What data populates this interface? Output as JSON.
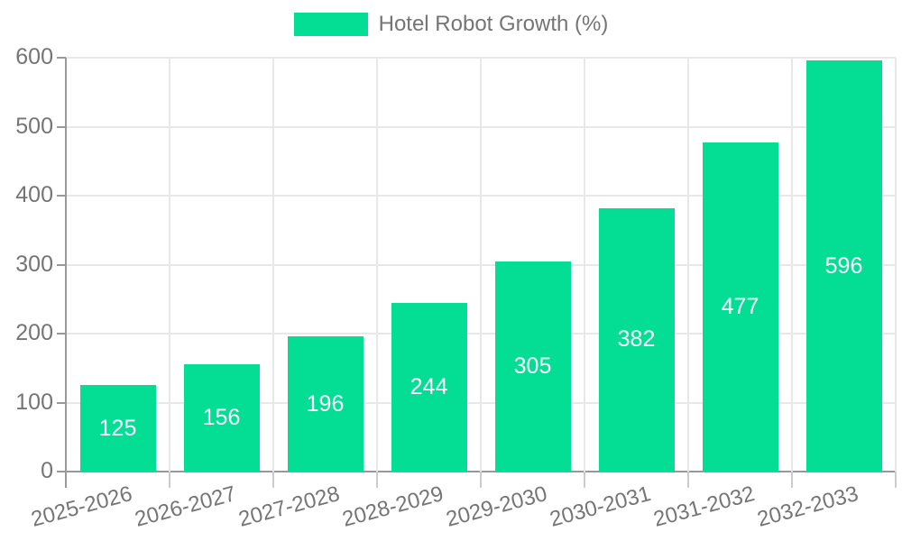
{
  "legend": {
    "label": "Hotel Robot Growth (%)",
    "swatch_color": "#04DE94"
  },
  "chart_data": {
    "type": "bar",
    "title": "Hotel Robot Growth (%)",
    "categories": [
      "2025-2026",
      "2026-2027",
      "2027-2028",
      "2028-2029",
      "2029-2030",
      "2030-2031",
      "2031-2032",
      "2032-2033"
    ],
    "values": [
      125,
      156,
      196,
      244,
      305,
      382,
      477,
      596
    ],
    "series": [
      {
        "name": "Hotel Robot Growth (%)",
        "values": [
          125,
          156,
          196,
          244,
          305,
          382,
          477,
          596
        ]
      }
    ],
    "xlabel": "",
    "ylabel": "",
    "ylim": [
      0,
      600
    ],
    "yticks": [
      0,
      100,
      200,
      300,
      400,
      500,
      600
    ],
    "grid": true,
    "legend_position": "top",
    "value_labels": true,
    "colors": {
      "bar": "#04DE94",
      "grid_line": "#e8e8e8",
      "axis_line": "#999999",
      "tick": "#cccccc",
      "axis_text": "#757575",
      "value_text": "#ffffff"
    }
  }
}
